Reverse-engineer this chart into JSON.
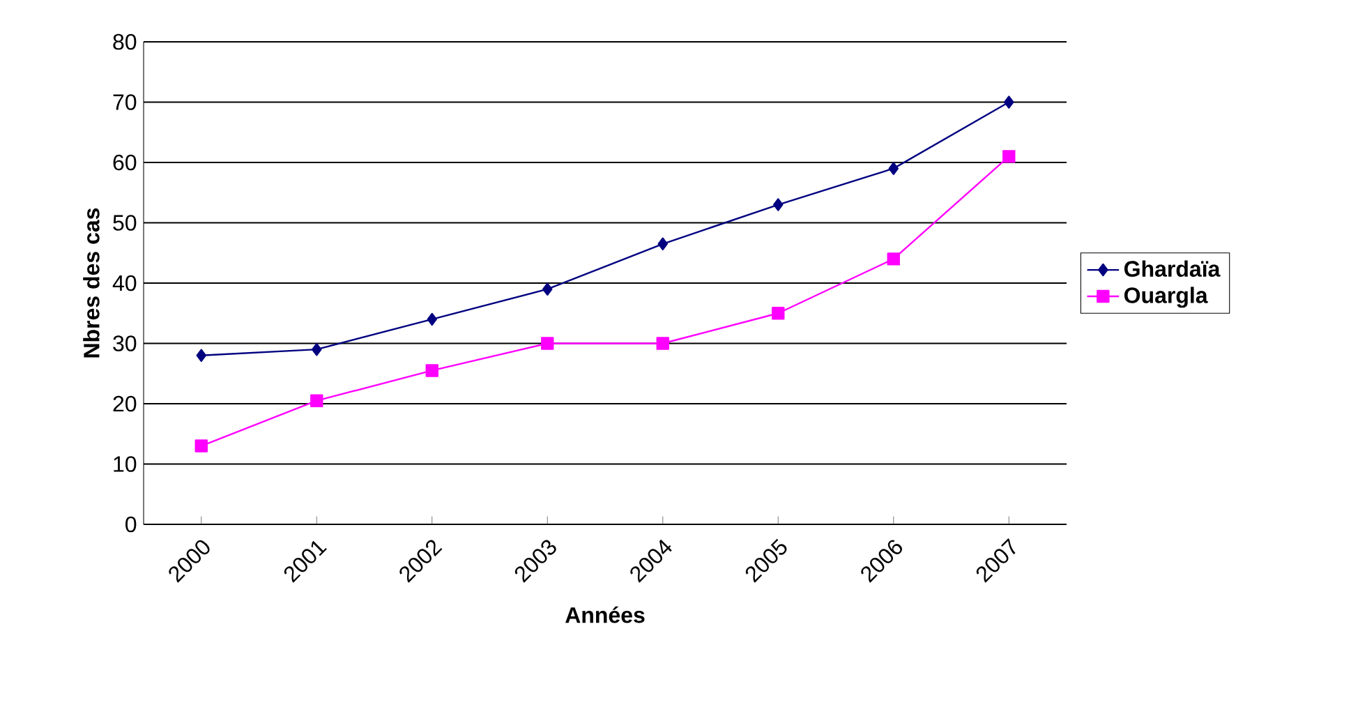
{
  "chart_data": {
    "type": "line",
    "xlabel": "Années",
    "ylabel": "Nbres des cas",
    "categories": [
      "2000",
      "2001",
      "2002",
      "2003",
      "2004",
      "2005",
      "2006",
      "2007"
    ],
    "series": [
      {
        "name": "Ghardaïa",
        "color": "#000080",
        "marker": "diamond",
        "values": [
          28,
          29,
          34,
          39,
          46.5,
          53,
          59,
          70
        ]
      },
      {
        "name": "Ouargla",
        "color": "#ff00ff",
        "marker": "square",
        "values": [
          13,
          20.5,
          25.5,
          30,
          30,
          35,
          44,
          61
        ]
      }
    ],
    "ylim": [
      0,
      80
    ],
    "yticks": [
      0,
      10,
      20,
      30,
      40,
      50,
      60,
      70,
      80
    ],
    "grid": "y",
    "legend": "right",
    "line_style": "solid"
  }
}
